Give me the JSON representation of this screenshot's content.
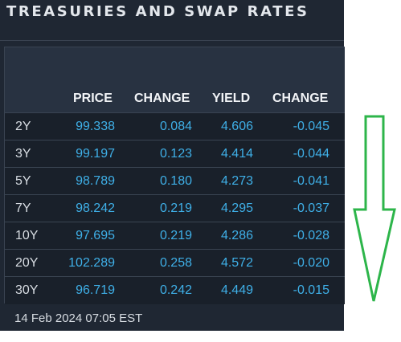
{
  "panel": {
    "title": "TREASURIES AND SWAP RATES"
  },
  "table": {
    "headers": [
      "PRICE",
      "CHANGE",
      "YIELD",
      "CHANGE"
    ],
    "rows": [
      {
        "tenor": "2Y",
        "price": "99.338",
        "price_change": "0.084",
        "yield": "4.606",
        "yield_change": "-0.045"
      },
      {
        "tenor": "3Y",
        "price": "99.197",
        "price_change": "0.123",
        "yield": "4.414",
        "yield_change": "-0.044"
      },
      {
        "tenor": "5Y",
        "price": "98.789",
        "price_change": "0.180",
        "yield": "4.273",
        "yield_change": "-0.041"
      },
      {
        "tenor": "7Y",
        "price": "98.242",
        "price_change": "0.219",
        "yield": "4.295",
        "yield_change": "-0.037"
      },
      {
        "tenor": "10Y",
        "price": "97.695",
        "price_change": "0.219",
        "yield": "4.286",
        "yield_change": "-0.028"
      },
      {
        "tenor": "20Y",
        "price": "102.289",
        "price_change": "0.258",
        "yield": "4.572",
        "yield_change": "-0.020"
      },
      {
        "tenor": "30Y",
        "price": "96.719",
        "price_change": "0.242",
        "yield": "4.449",
        "yield_change": "-0.015"
      }
    ]
  },
  "timestamp": "14 Feb 2024 07:05 EST",
  "colors": {
    "panel_bg": "#1f2733",
    "header_bg": "#283241",
    "value_blue": "#3fb0e8",
    "annotation_green": "#2db54a"
  },
  "annotation": {
    "icon": "down-arrow-icon"
  }
}
